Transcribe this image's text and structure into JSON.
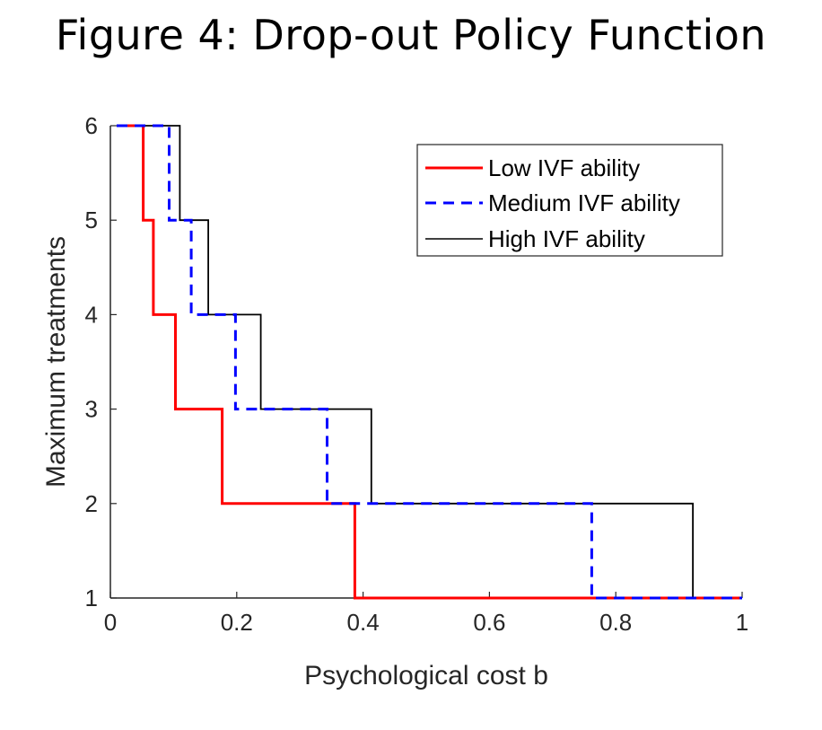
{
  "figure_title": "Figure 4: Drop-out Policy Function",
  "chart_data": {
    "type": "line",
    "title": "Figure 4: Drop-out Policy Function",
    "xlabel": "Psychological cost b",
    "ylabel": "Maximum treatments",
    "xlim": [
      0,
      1
    ],
    "ylim": [
      1,
      6
    ],
    "xticks": [
      0,
      0.2,
      0.4,
      0.6,
      0.8,
      1
    ],
    "xtick_labels": [
      "0",
      "0.2",
      "0.4",
      "0.6",
      "0.8",
      "1"
    ],
    "yticks": [
      1,
      2,
      3,
      4,
      5,
      6
    ],
    "ytick_labels": [
      "1",
      "2",
      "3",
      "4",
      "5",
      "6"
    ],
    "grid": false,
    "legend_position": "top-right",
    "series": [
      {
        "name": "Low IVF ability",
        "color": "#ff0000",
        "style": "solid",
        "x": [
          0.01,
          0.052,
          0.052,
          0.068,
          0.068,
          0.103,
          0.103,
          0.177,
          0.177,
          0.387,
          0.387,
          1.0
        ],
        "y": [
          6,
          6,
          5,
          5,
          4,
          4,
          3,
          3,
          2,
          2,
          1,
          1
        ]
      },
      {
        "name": "Medium IVF ability",
        "color": "#0000ff",
        "style": "dashed",
        "x": [
          0.01,
          0.093,
          0.093,
          0.128,
          0.128,
          0.198,
          0.198,
          0.343,
          0.343,
          0.762,
          0.762,
          1.0
        ],
        "y": [
          6,
          6,
          5,
          5,
          4,
          4,
          3,
          3,
          2,
          2,
          1,
          1
        ]
      },
      {
        "name": "High IVF ability",
        "color": "#000000",
        "style": "solid-thin",
        "x": [
          0.01,
          0.11,
          0.11,
          0.155,
          0.155,
          0.238,
          0.238,
          0.413,
          0.413,
          0.922,
          0.922,
          1.0
        ],
        "y": [
          6,
          6,
          5,
          5,
          4,
          4,
          3,
          3,
          2,
          2,
          1,
          1
        ]
      }
    ]
  }
}
